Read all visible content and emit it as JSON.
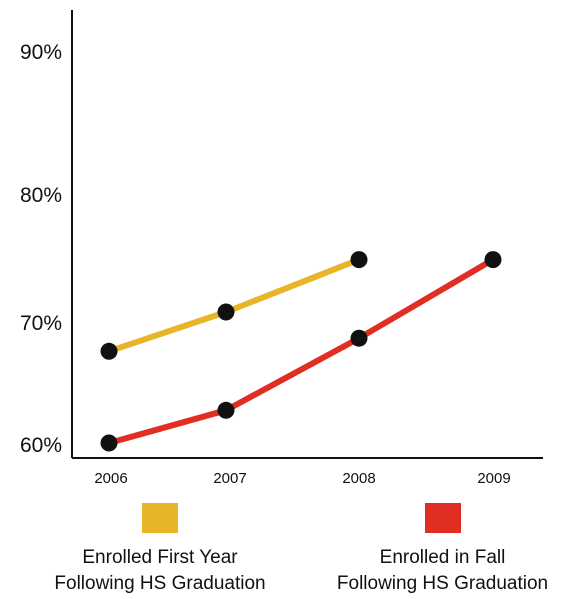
{
  "chart_data": {
    "type": "line",
    "categories": [
      "2006",
      "2007",
      "2008",
      "2009"
    ],
    "yticks": [
      "60%",
      "70%",
      "80%",
      "90%"
    ],
    "ylim": [
      60,
      90
    ],
    "grid": false,
    "legend_position": "bottom",
    "series": [
      {
        "name_lines": [
          "Enrolled First Year",
          "Following HS Graduation"
        ],
        "color": "#E8B42A",
        "values": [
          67,
          70,
          74,
          null
        ]
      },
      {
        "name_lines": [
          "Enrolled in Fall",
          "Following HS Graduation"
        ],
        "color": "#E02E22",
        "values": [
          60,
          62.5,
          68,
          74
        ]
      }
    ]
  }
}
